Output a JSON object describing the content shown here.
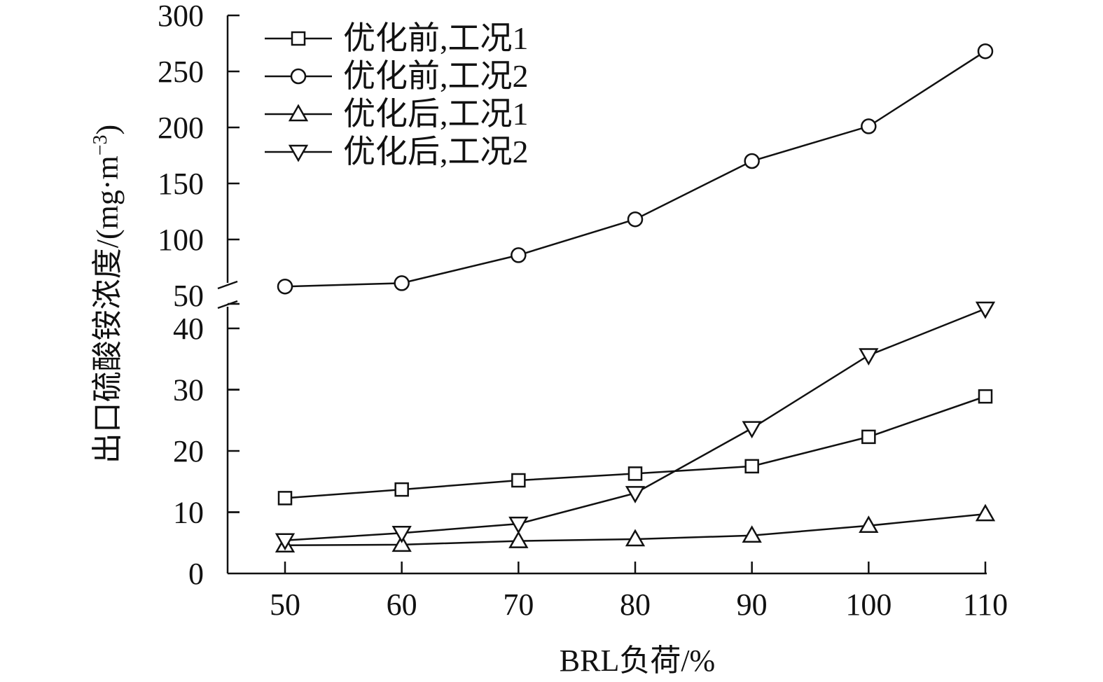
{
  "chart_data": {
    "type": "line",
    "xlabel": "BRL负荷/%",
    "ylabel": "出口硫酸铵浓度/(mg·m",
    "ylabel_sup": "−3",
    "ylabel_close": ")",
    "x": [
      50,
      60,
      70,
      80,
      90,
      100,
      110
    ],
    "x_ticks": [
      "50",
      "60",
      "70",
      "80",
      "90",
      "100",
      "110"
    ],
    "y_ticks_lower": [
      "0",
      "10",
      "20",
      "30",
      "40"
    ],
    "y_ticks_upper": [
      "50",
      "100",
      "150",
      "200",
      "250",
      "300"
    ],
    "ylim": [
      0,
      300
    ],
    "axis_break": [
      46,
      50
    ],
    "grid": false,
    "legend_position": "top-left",
    "series": [
      {
        "name": "优化前,工况1",
        "marker": "square",
        "values": [
          12.3,
          13.7,
          15.2,
          16.3,
          17.5,
          22.3,
          28.9
        ]
      },
      {
        "name": "优化前,工况2",
        "marker": "circle",
        "values": [
          58,
          61,
          86,
          118,
          170,
          201,
          268
        ]
      },
      {
        "name": "优化后,工况1",
        "marker": "triangle-up",
        "values": [
          4.6,
          4.7,
          5.3,
          5.6,
          6.2,
          7.8,
          9.7
        ]
      },
      {
        "name": "优化后,工况2",
        "marker": "triangle-down",
        "values": [
          5.4,
          6.6,
          8.1,
          13.1,
          23.7,
          35.6,
          43.2
        ]
      }
    ]
  }
}
